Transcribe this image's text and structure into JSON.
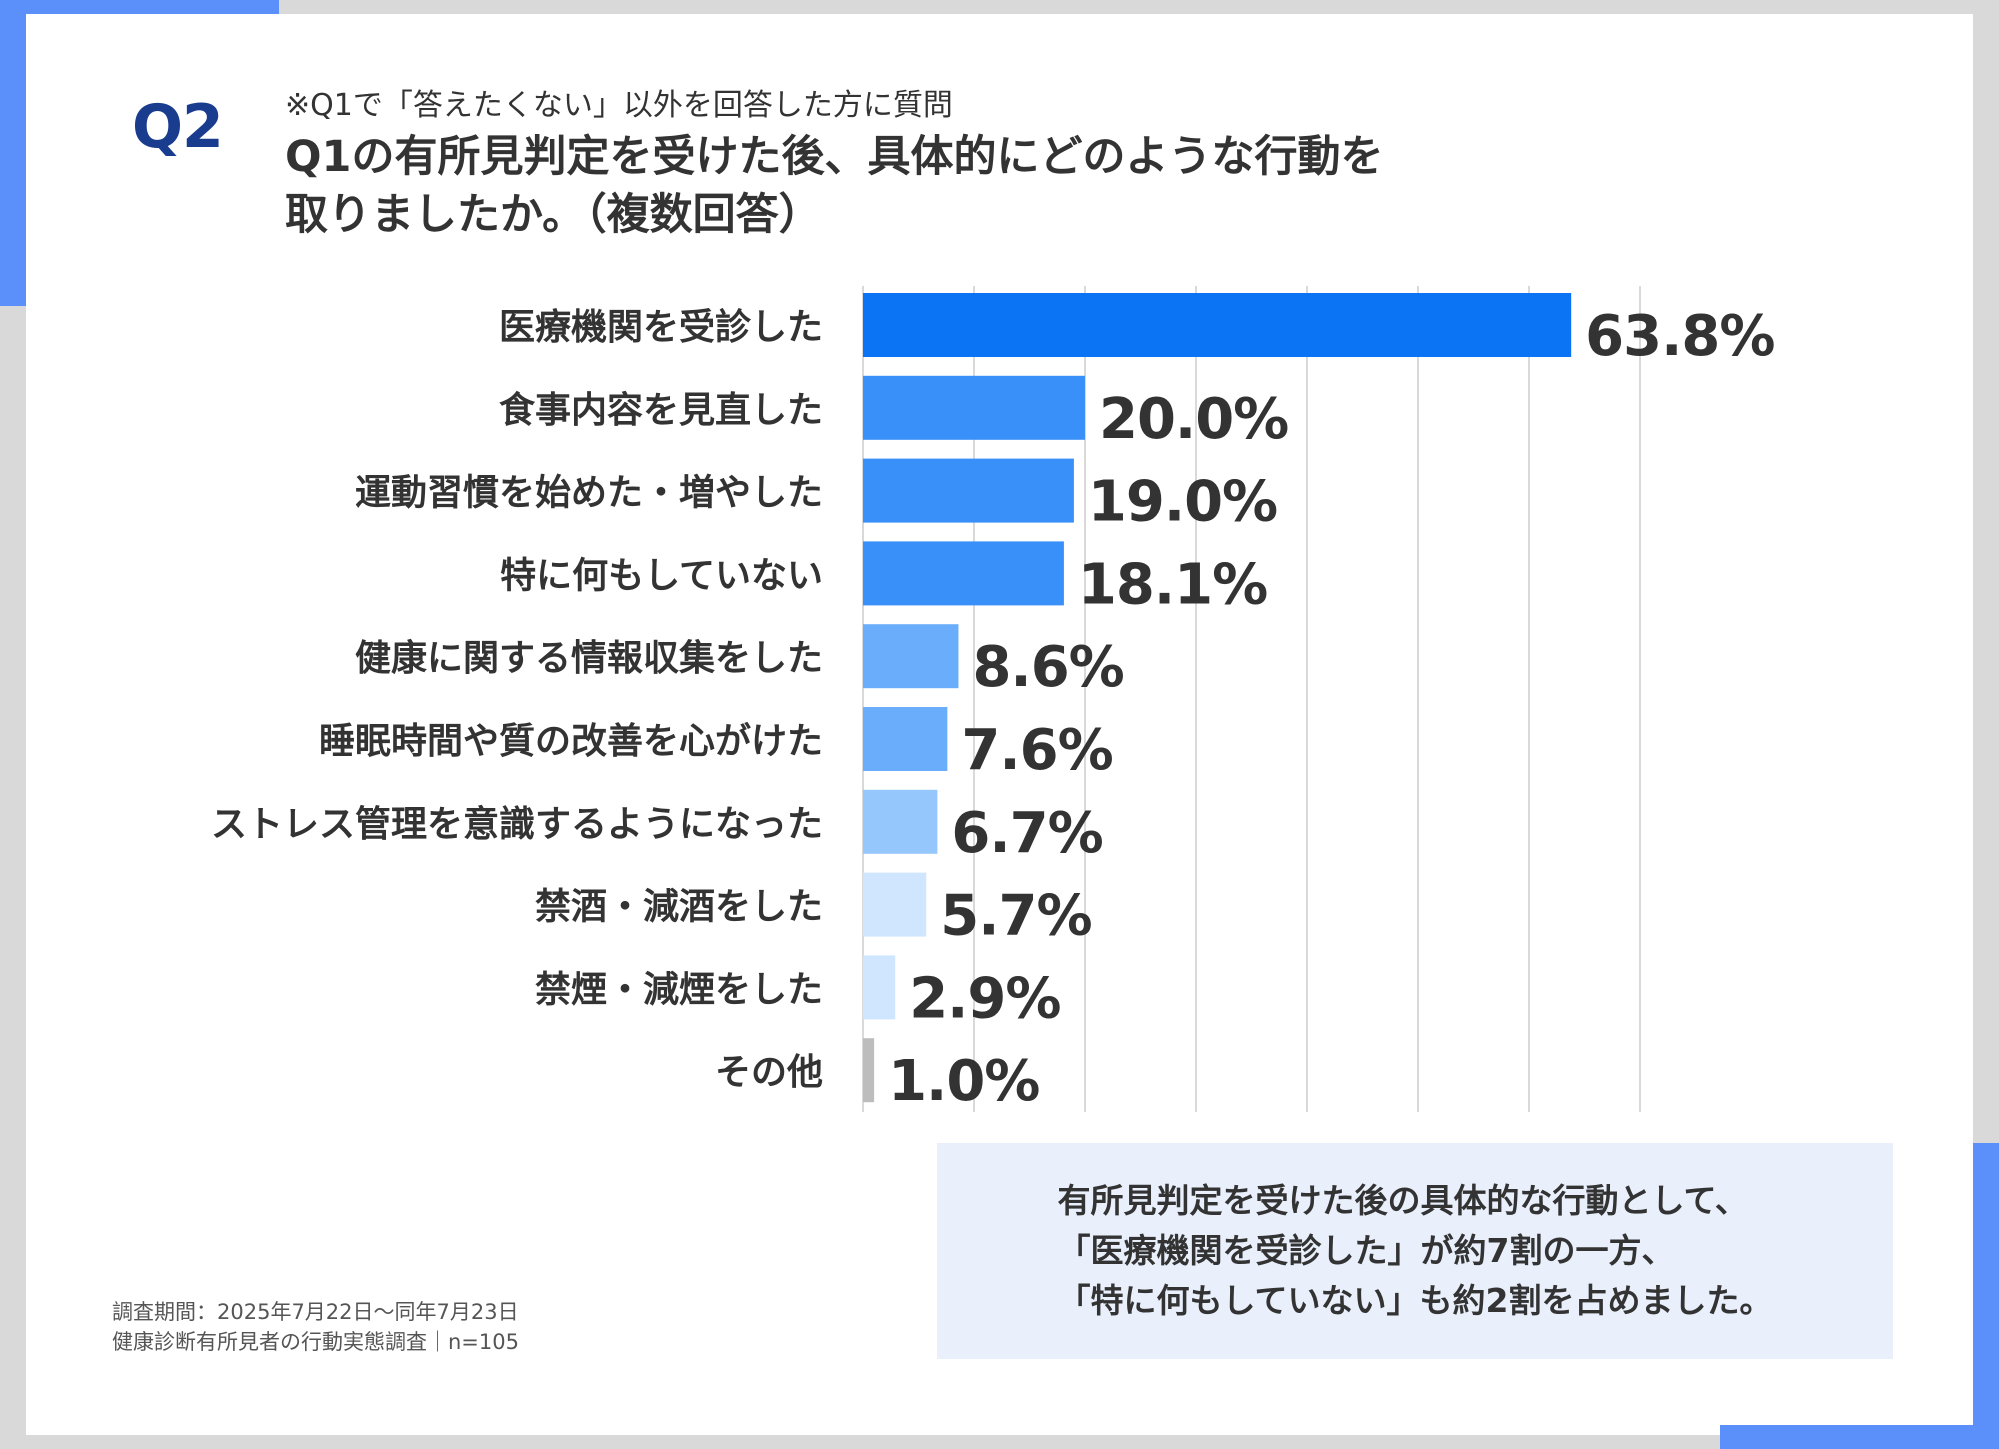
{
  "header": {
    "question_number": "Q2",
    "note": "※Q1で「答えたくない」以外を回答した方に質問",
    "title_line1": "Q1の有所見判定を受けた後、具体的にどのような行動を",
    "title_line2": "取りましたか。（複数回答）"
  },
  "chart_data": {
    "type": "bar",
    "orientation": "horizontal",
    "categories": [
      "医療機関を受診した",
      "食事内容を見直した",
      "運動習慣を始めた・増やした",
      "特に何もしていない",
      "健康に関する情報収集をした",
      "睡眠時間や質の改善を心がけた",
      "ストレス管理を意識するようになった",
      "禁酒・減酒をした",
      "禁煙・減煙をした",
      "その他"
    ],
    "values": [
      63.8,
      20.0,
      19.0,
      18.1,
      8.6,
      7.6,
      6.7,
      5.7,
      2.9,
      1.0
    ],
    "value_labels": [
      "63.8%",
      "20.0%",
      "19.0%",
      "18.1%",
      "8.6%",
      "7.6%",
      "6.7%",
      "5.7%",
      "2.9%",
      "1.0%"
    ],
    "colors": [
      "#0a74f5",
      "#3a90f9",
      "#3a90f9",
      "#3a90f9",
      "#6aaefb",
      "#6aaefb",
      "#95c6fc",
      "#d0e5fe",
      "#d0e5fe",
      "#bdbdbd"
    ],
    "xlim": [
      0,
      70
    ],
    "grid": true,
    "xlabel": "",
    "ylabel": "",
    "title": ""
  },
  "summary": {
    "text": "有所見判定を受けた後の具体的な行動として、\n「医療機関を受診した」が約7割の一方、\n「特に何もしていない」も約2割を占めました。"
  },
  "footer": {
    "period": "調査期間：2025年7月22日～同年7月23日",
    "survey": "健康診断有所見者の行動実態調査｜n=105"
  },
  "colors": {
    "accent": "#5b8ff9",
    "question_number": "#1a3c8f",
    "summary_bg": "#e9f0fc"
  }
}
